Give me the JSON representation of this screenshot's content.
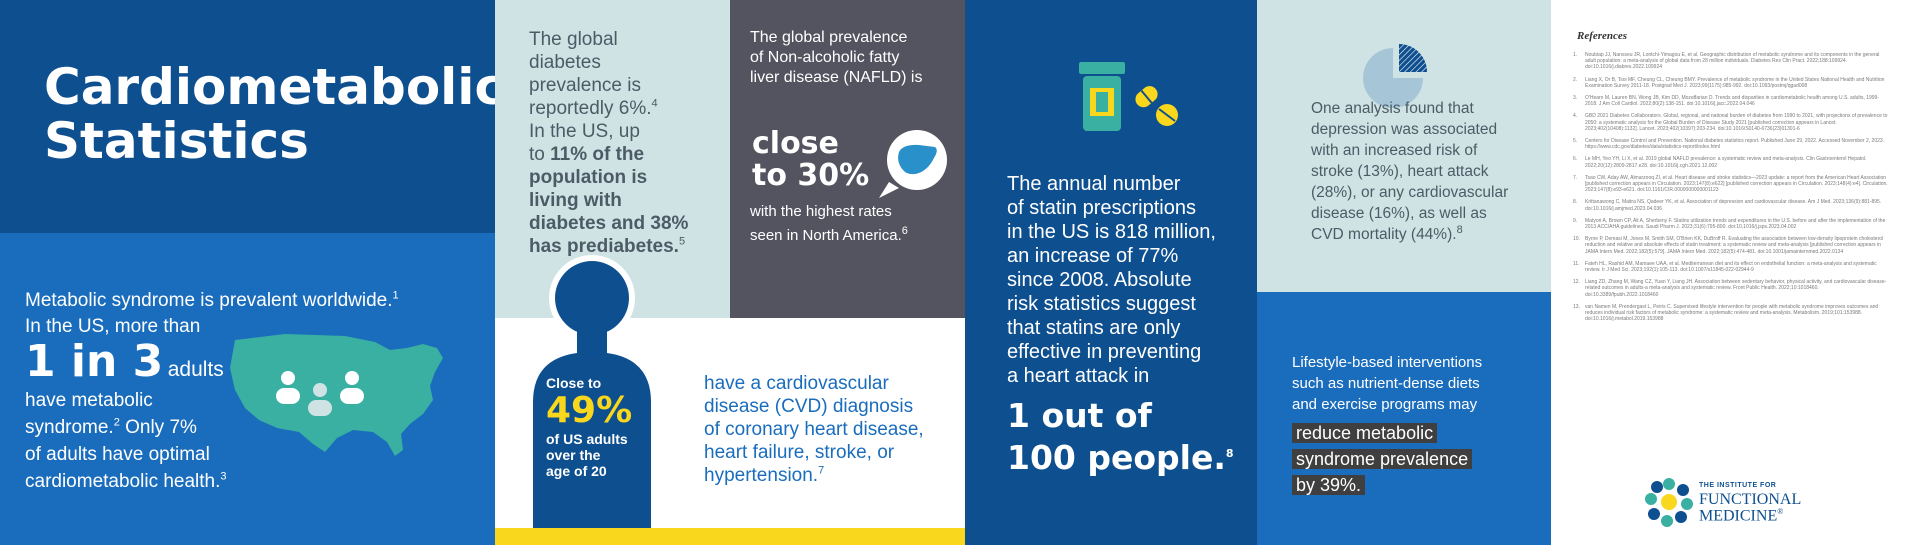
{
  "panel1": {
    "title_line1": "Cardiometabolic",
    "title_line2": "Statistics",
    "line1": "Metabolic syndrome is prevalent worldwide.",
    "line1_sup": "1",
    "line2": "In the US, more than",
    "big": "1 in 3",
    "after_big": "adults",
    "line3": "have metabolic",
    "line4": "syndrome.",
    "line4_sup": "2",
    "line4_rest": " Only 7%",
    "line5": "of adults have optimal",
    "line6": "cardiometabolic health.",
    "line6_sup": "3"
  },
  "panel2": {
    "l1": "The global",
    "l2": "diabetes",
    "l3": "prevalence is",
    "l4": "reportedly 6%.",
    "l4_sup": "4",
    "l5": "In the US, up",
    "l6a": "to ",
    "l6b": "11% of the",
    "l7": "population is",
    "l8": "living with",
    "l9": "diabetes and 38%",
    "l10": "has prediabetes.",
    "l10_sup": "5",
    "close_to": "Close to",
    "percent": "49%",
    "of_us": "of US adults",
    "over_the": "over the",
    "age": "age of 20",
    "cvd1": "have a cardiovascular",
    "cvd2": "disease (CVD) diagnosis",
    "cvd3": "of coronary heart disease,",
    "cvd4": "heart failure, stroke, or",
    "cvd5": "hypertension.",
    "cvd5_sup": "7"
  },
  "panel3": {
    "l1": "The global prevalence",
    "l2": "of Non-alcoholic fatty",
    "l3": "liver disease (NAFLD) is",
    "big1": "close",
    "big2": "to 30%",
    "l4": "with the highest rates",
    "l5": "seen in North America.",
    "l5_sup": "6"
  },
  "panel4": {
    "l1": "The annual number",
    "l2": "of statin prescriptions",
    "l3": "in the US is 818 million,",
    "l4": "an increase of 77%",
    "l5": "since 2008. Absolute",
    "l6": "risk statistics suggest",
    "l7": "that statins are only",
    "l8": "effective in preventing",
    "l9": "a heart attack in",
    "big1": "1 out of",
    "big2": "100 people.",
    "big2_sup": "8"
  },
  "panel5": {
    "l1": "One analysis found that",
    "l2": "depression was associated",
    "l3": "with an increased risk of",
    "l4": "stroke (13%), heart attack",
    "l5": "(28%), or any cardiovascular",
    "l6": "disease (16%), as well as",
    "l7": "CVD mortality (44%).",
    "l7_sup": "8",
    "b1": "Lifestyle-based interventions",
    "b2": "such as nutrient-dense diets",
    "b3": "and exercise programs may",
    "h1": "reduce metabolic",
    "h2": "syndrome prevalence",
    "h3": "by 39%."
  },
  "references": {
    "title": "References",
    "items": [
      {
        "num": "1.",
        "text": "Noubiap JJ, Nansseu JR, Lontchi-Yimagou E, et al. Geographic distribution of metabolic syndrome and its components in the general adult population: a meta-analysis of global data from 28 million individuals. Diabetes Res Clin Pract. 2022;188:109924. doi:10.1016/j.diabres.2022.109924"
      },
      {
        "num": "2.",
        "text": "Liang X, Or B, Tsoi MF, Cheung CL, Cheung BMY. Prevalence of metabolic syndrome in the United States National Health and Nutrition Examination Survey 2011-18. Postgrad Med J. 2023;99(1175):985-992. doi:10.1093/postmj/qgad008"
      },
      {
        "num": "3.",
        "text": "O'Hearn M, Lauren BN, Wong JB, Kim DD, Mozaffarian D. Trends and disparities in cardiometabolic health among U.S. adults, 1999-2018. J Am Coll Cardiol. 2022;80(2):138-151. doi:10.1016/j.jacc.2022.04.046"
      },
      {
        "num": "4.",
        "text": "GBD 2021 Diabetes Collaborators. Global, regional, and national burden of diabetes from 1990 to 2021, with projections of prevalence to 2050: a systematic analysis for the Global Burden of Disease Study 2021 [published correction appears in Lancet. 2023;402(10408):1132]. Lancet. 2023;402(10397):203-234. doi:10.1016/S0140-6736(23)01301-6"
      },
      {
        "num": "5.",
        "text": "Centers for Disease Control and Prevention. National diabetes statistics report. Published June 29, 2022. Accessed November 2, 2023. https://www.cdc.gov/diabetes/data/statistics-report/index.html"
      },
      {
        "num": "6.",
        "text": "Le MH, Yeo YH, Li X, et al. 2019 global NAFLD prevalence: a systematic review and meta-analysis. Clin Gastroenterol Hepatol. 2022;20(12):2809-2817.e28. doi:10.1016/j.cgh.2021.12.002"
      },
      {
        "num": "7.",
        "text": "Tsao CW, Aday AW, Almarzooq ZI, et al. Heart disease and stroke statistics—2023 update: a report from the American Heart Association [published correction appears in Circulation. 2023;147(8):e622] [published correction appears in Circulation. 2023;148(4):e4]. Circulation. 2023;147(8):e93-e621. doi:10.1161/CIR.0000000000001123"
      },
      {
        "num": "8.",
        "text": "Krittanawong C, Maitra NS, Qadeer YK, et al. Association of depression and cardiovascular disease. Am J Med. 2023;136(9):881-895. doi:10.1016/j.amjmed.2023.04.036"
      },
      {
        "num": "9.",
        "text": "Matyori A, Brown CP, Ali A, Sherbeny F. Statins utilization trends and expenditures in the U.S. before and after the implementation of the 2013 ACC/AHA guidelines. Saudi Pharm J. 2023;31(6):795-800. doi:10.1016/j.jsps.2023.04.002"
      },
      {
        "num": "10.",
        "text": "Byrne P, Demasi M, Jones M, Smith SM, O'Brien KK, DuBroff R. Evaluating the association between low-density lipoprotein cholesterol reduction and relative and absolute effects of statin treatment: a systematic review and meta-analysis [published correction appears in JAMA Intern Med. 2022;182(5):579]. JAMA Intern Med. 2022;182(5):474-481. doi:10.1001/jamainternmed.2022.0134"
      },
      {
        "num": "11.",
        "text": "Fateh HL, Rashid AM, Mamaee UAA, et al. Mediterranean diet and its effect on endothelial function: a meta-analysis and systematic review. Ir J Med Sci. 2023;192(1):105-113. doi:10.1007/s11845-022-02944-9"
      },
      {
        "num": "12.",
        "text": "Liang ZD, Zhang M, Wang CZ, Yuan Y, Liang JH. Association between sedentary behavior, physical activity, and cardiovascular disease-related outcomes in adults-a meta-analysis and systematic review. Front Public Health. 2022;10:1018460. doi:10.3389/fpubh.2022.1018460"
      },
      {
        "num": "13.",
        "text": "van Namen M, Prendergast L, Peiris C. Supervised lifestyle intervention for people with metabolic syndrome improves outcomes and reduces individual risk factors of metabolic syndrome: a systematic review and meta-analysis. Metabolism. 2019;101:153988. doi:10.1016/j.metabol.2019.153988"
      }
    ],
    "logo_line1": "THE INSTITUTE FOR",
    "logo_line2": "FUNCTIONAL",
    "logo_line3": "MEDICINE",
    "logo_reg": "®"
  },
  "colors": {
    "dark_blue": "#0e4f8f",
    "mid_blue": "#1a6dbd",
    "teal_light": "#cfe3e4",
    "teal": "#3ab0a2",
    "charcoal": "#545460",
    "yellow": "#f9d71c"
  },
  "icons": [
    "us-map-icon",
    "people-icon",
    "human-silhouette-icon",
    "liver-icon",
    "pill-bottle-icon",
    "pills-icon",
    "pie-chart-icon",
    "ifm-logo-icon"
  ]
}
